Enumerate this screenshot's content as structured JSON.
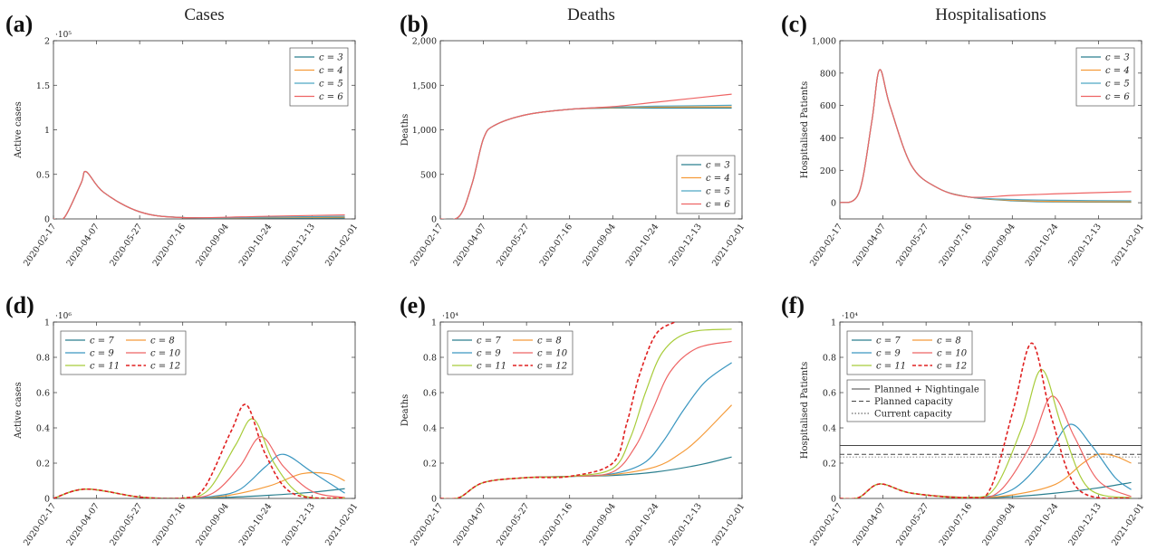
{
  "x_ticks": [
    "2020-02-17",
    "2020-04-07",
    "2020-05-27",
    "2020-07-16",
    "2020-09-04",
    "2020-10-24",
    "2020-12-13",
    "2021-02-01"
  ],
  "colors": {
    "c3": "#2a7f8f",
    "c4": "#f59b3a",
    "c5": "#4ea6c3",
    "c6": "#ee6464",
    "c7": "#2a7f8f",
    "c8": "#f59b3a",
    "c9": "#3a96c0",
    "c10": "#ee6464",
    "c11": "#a8cc3a",
    "c12": "#e02020",
    "capacity": "#444444"
  },
  "chart_data": [
    {
      "id": "a",
      "panel_label": "(a)",
      "type": "line",
      "title": "Cases",
      "ylabel": "Active cases",
      "multiplier": "·10⁵",
      "ylim": [
        0,
        2
      ],
      "yticks": [
        "0",
        "0.5",
        "1",
        "1.5",
        "2"
      ],
      "legend_position": "top-right",
      "series": [
        {
          "name": "c = 3",
          "x": [
            "2020-02-17",
            "2020-03-01",
            "2020-03-20",
            "2020-03-26",
            "2020-04-15",
            "2020-05-27",
            "2020-07-16",
            "2020-10-24",
            "2021-01-20"
          ],
          "y": [
            0,
            0.02,
            0.4,
            0.53,
            0.3,
            0.08,
            0.015,
            0.01,
            0.01
          ]
        },
        {
          "name": "c = 4",
          "x": [
            "2020-02-17",
            "2020-03-01",
            "2020-03-20",
            "2020-03-26",
            "2020-04-15",
            "2020-05-27",
            "2020-07-16",
            "2020-10-24",
            "2021-01-20"
          ],
          "y": [
            0,
            0.02,
            0.4,
            0.53,
            0.3,
            0.08,
            0.015,
            0.015,
            0.02
          ]
        },
        {
          "name": "c = 5",
          "x": [
            "2020-02-17",
            "2020-03-01",
            "2020-03-20",
            "2020-03-26",
            "2020-04-15",
            "2020-05-27",
            "2020-07-16",
            "2020-10-24",
            "2021-01-20"
          ],
          "y": [
            0,
            0.02,
            0.4,
            0.53,
            0.3,
            0.08,
            0.015,
            0.02,
            0.03
          ]
        },
        {
          "name": "c = 6",
          "x": [
            "2020-02-17",
            "2020-03-01",
            "2020-03-20",
            "2020-03-26",
            "2020-04-15",
            "2020-05-27",
            "2020-07-16",
            "2020-10-24",
            "2021-01-20"
          ],
          "y": [
            0,
            0.02,
            0.4,
            0.53,
            0.3,
            0.08,
            0.015,
            0.03,
            0.045
          ]
        }
      ]
    },
    {
      "id": "b",
      "panel_label": "(b)",
      "type": "line",
      "title": "Deaths",
      "ylabel": "Deaths",
      "multiplier": "",
      "ylim": [
        0,
        2000
      ],
      "yticks": [
        "0",
        "500",
        "1,000",
        "1,500",
        "2,000"
      ],
      "legend_position": "bottom-right",
      "series": [
        {
          "name": "c = 3",
          "x": [
            "2020-02-17",
            "2020-03-10",
            "2020-03-25",
            "2020-04-07",
            "2020-04-20",
            "2020-05-27",
            "2020-07-16",
            "2020-09-04",
            "2020-10-24",
            "2021-01-20"
          ],
          "y": [
            0,
            30,
            400,
            900,
            1050,
            1170,
            1230,
            1245,
            1245,
            1245
          ]
        },
        {
          "name": "c = 4",
          "x": [
            "2020-02-17",
            "2020-03-10",
            "2020-03-25",
            "2020-04-07",
            "2020-04-20",
            "2020-05-27",
            "2020-07-16",
            "2020-09-04",
            "2020-10-24",
            "2021-01-20"
          ],
          "y": [
            0,
            30,
            400,
            900,
            1050,
            1170,
            1230,
            1250,
            1255,
            1258
          ]
        },
        {
          "name": "c = 5",
          "x": [
            "2020-02-17",
            "2020-03-10",
            "2020-03-25",
            "2020-04-07",
            "2020-04-20",
            "2020-05-27",
            "2020-07-16",
            "2020-09-04",
            "2020-10-24",
            "2021-01-20"
          ],
          "y": [
            0,
            30,
            400,
            900,
            1050,
            1170,
            1230,
            1255,
            1265,
            1275
          ]
        },
        {
          "name": "c = 6",
          "x": [
            "2020-02-17",
            "2020-03-10",
            "2020-03-25",
            "2020-04-07",
            "2020-04-20",
            "2020-05-27",
            "2020-07-16",
            "2020-09-04",
            "2020-10-24",
            "2021-01-20"
          ],
          "y": [
            0,
            30,
            400,
            900,
            1050,
            1170,
            1230,
            1260,
            1310,
            1400
          ]
        }
      ]
    },
    {
      "id": "c",
      "panel_label": "(c)",
      "type": "line",
      "title": "Hospitalisations",
      "ylabel": "Hospitalised Patients",
      "multiplier": "",
      "ylim": [
        -100,
        1000
      ],
      "yticks": [
        "0",
        "200",
        "400",
        "600",
        "800",
        "1,000"
      ],
      "legend_position": "top-right",
      "series": [
        {
          "name": "c = 3",
          "x": [
            "2020-02-17",
            "2020-03-10",
            "2020-03-25",
            "2020-04-03",
            "2020-04-15",
            "2020-05-10",
            "2020-06-10",
            "2020-07-16",
            "2020-09-04",
            "2020-10-24",
            "2021-01-20"
          ],
          "y": [
            0,
            60,
            500,
            820,
            600,
            230,
            90,
            35,
            12,
            5,
            3
          ]
        },
        {
          "name": "c = 4",
          "x": [
            "2020-02-17",
            "2020-03-10",
            "2020-03-25",
            "2020-04-03",
            "2020-04-15",
            "2020-05-10",
            "2020-06-10",
            "2020-07-16",
            "2020-09-04",
            "2020-10-24",
            "2021-01-20"
          ],
          "y": [
            0,
            60,
            500,
            820,
            600,
            230,
            90,
            35,
            15,
            8,
            6
          ]
        },
        {
          "name": "c = 5",
          "x": [
            "2020-02-17",
            "2020-03-10",
            "2020-03-25",
            "2020-04-03",
            "2020-04-15",
            "2020-05-10",
            "2020-06-10",
            "2020-07-16",
            "2020-09-04",
            "2020-10-24",
            "2021-01-20"
          ],
          "y": [
            0,
            60,
            500,
            820,
            600,
            230,
            90,
            35,
            20,
            15,
            12
          ]
        },
        {
          "name": "c = 6",
          "x": [
            "2020-02-17",
            "2020-03-10",
            "2020-03-25",
            "2020-04-03",
            "2020-04-15",
            "2020-05-10",
            "2020-06-10",
            "2020-07-16",
            "2020-09-04",
            "2020-10-24",
            "2021-01-20"
          ],
          "y": [
            0,
            60,
            500,
            820,
            600,
            230,
            90,
            35,
            45,
            55,
            68
          ]
        }
      ]
    },
    {
      "id": "d",
      "panel_label": "(d)",
      "type": "line",
      "title": "",
      "ylabel": "Active cases",
      "multiplier": "·10⁶",
      "ylim": [
        0,
        1
      ],
      "yticks": [
        "0",
        "0.2",
        "0.4",
        "0.6",
        "0.8",
        "1"
      ],
      "legend_position": "top-left",
      "series": [
        {
          "name": "c = 7",
          "x": [
            "2020-02-17",
            "2020-03-26",
            "2020-05-27",
            "2020-07-16",
            "2020-09-04",
            "2020-10-24",
            "2020-12-13",
            "2021-01-20"
          ],
          "y": [
            0,
            0.053,
            0.008,
            0.002,
            0.006,
            0.018,
            0.035,
            0.055
          ]
        },
        {
          "name": "c = 8",
          "x": [
            "2020-02-17",
            "2020-03-26",
            "2020-05-27",
            "2020-07-16",
            "2020-09-04",
            "2020-10-24",
            "2020-12-01",
            "2021-01-01",
            "2021-01-20"
          ],
          "y": [
            0,
            0.053,
            0.008,
            0.002,
            0.015,
            0.07,
            0.14,
            0.14,
            0.1
          ]
        },
        {
          "name": "c = 9",
          "x": [
            "2020-02-17",
            "2020-03-26",
            "2020-05-27",
            "2020-07-16",
            "2020-08-20",
            "2020-09-20",
            "2020-10-20",
            "2020-11-10",
            "2020-12-13",
            "2021-01-20"
          ],
          "y": [
            0,
            0.053,
            0.008,
            0.002,
            0.012,
            0.05,
            0.18,
            0.25,
            0.15,
            0.03
          ]
        },
        {
          "name": "c = 10",
          "x": [
            "2020-02-17",
            "2020-03-26",
            "2020-05-27",
            "2020-07-16",
            "2020-08-20",
            "2020-09-20",
            "2020-10-15",
            "2020-11-10",
            "2020-12-13",
            "2021-01-20"
          ],
          "y": [
            0,
            0.053,
            0.008,
            0.002,
            0.03,
            0.18,
            0.35,
            0.18,
            0.04,
            0.005
          ]
        },
        {
          "name": "c = 11",
          "x": [
            "2020-02-17",
            "2020-03-26",
            "2020-05-27",
            "2020-07-16",
            "2020-08-15",
            "2020-09-15",
            "2020-10-06",
            "2020-10-30",
            "2020-12-01",
            "2021-01-20"
          ],
          "y": [
            0,
            0.053,
            0.008,
            0.002,
            0.05,
            0.3,
            0.45,
            0.2,
            0.02,
            0.002
          ]
        },
        {
          "name": "c = 12",
          "x": [
            "2020-02-17",
            "2020-03-26",
            "2020-05-27",
            "2020-07-16",
            "2020-08-10",
            "2020-09-10",
            "2020-09-28",
            "2020-10-20",
            "2020-11-20",
            "2021-01-20"
          ],
          "y": [
            0,
            0.053,
            0.008,
            0.002,
            0.06,
            0.38,
            0.53,
            0.25,
            0.03,
            0.001
          ]
        }
      ]
    },
    {
      "id": "e",
      "panel_label": "(e)",
      "type": "line",
      "title": "",
      "ylabel": "Deaths",
      "multiplier": "·10⁴",
      "ylim": [
        0,
        1
      ],
      "yticks": [
        "0",
        "0.2",
        "0.4",
        "0.6",
        "0.8",
        "1"
      ],
      "legend_position": "top-left",
      "series": [
        {
          "name": "c = 7",
          "x": [
            "2020-02-17",
            "2020-03-10",
            "2020-04-07",
            "2020-05-27",
            "2020-07-16",
            "2020-09-04",
            "2020-10-24",
            "2020-12-13",
            "2021-01-20"
          ],
          "y": [
            0,
            0.005,
            0.09,
            0.118,
            0.125,
            0.13,
            0.15,
            0.19,
            0.235
          ]
        },
        {
          "name": "c = 8",
          "x": [
            "2020-02-17",
            "2020-03-10",
            "2020-04-07",
            "2020-05-27",
            "2020-07-16",
            "2020-09-04",
            "2020-10-24",
            "2020-11-20",
            "2020-12-13",
            "2021-01-20"
          ],
          "y": [
            0,
            0.005,
            0.09,
            0.118,
            0.125,
            0.135,
            0.18,
            0.25,
            0.34,
            0.53
          ]
        },
        {
          "name": "c = 9",
          "x": [
            "2020-02-17",
            "2020-03-10",
            "2020-04-07",
            "2020-05-27",
            "2020-07-16",
            "2020-09-04",
            "2020-10-10",
            "2020-11-01",
            "2020-11-25",
            "2020-12-20",
            "2021-01-20"
          ],
          "y": [
            0,
            0.005,
            0.09,
            0.118,
            0.125,
            0.14,
            0.2,
            0.32,
            0.5,
            0.66,
            0.77
          ]
        },
        {
          "name": "c = 10",
          "x": [
            "2020-02-17",
            "2020-03-10",
            "2020-04-07",
            "2020-05-27",
            "2020-07-16",
            "2020-09-04",
            "2020-10-01",
            "2020-10-20",
            "2020-11-10",
            "2020-12-10",
            "2021-01-20"
          ],
          "y": [
            0,
            0.005,
            0.09,
            0.118,
            0.125,
            0.15,
            0.3,
            0.5,
            0.72,
            0.85,
            0.89
          ]
        },
        {
          "name": "c = 11",
          "x": [
            "2020-02-17",
            "2020-03-10",
            "2020-04-07",
            "2020-05-27",
            "2020-07-16",
            "2020-09-04",
            "2020-09-25",
            "2020-10-12",
            "2020-11-01",
            "2020-12-01",
            "2021-01-20"
          ],
          "y": [
            0,
            0.005,
            0.09,
            0.118,
            0.125,
            0.17,
            0.35,
            0.6,
            0.83,
            0.94,
            0.96
          ]
        },
        {
          "name": "c = 12",
          "x": [
            "2020-02-17",
            "2020-03-10",
            "2020-04-07",
            "2020-05-27",
            "2020-07-16",
            "2020-09-04",
            "2020-09-20",
            "2020-10-05",
            "2020-10-24",
            "2020-11-15"
          ],
          "y": [
            0,
            0.005,
            0.09,
            0.118,
            0.125,
            0.2,
            0.42,
            0.7,
            0.93,
            1.0
          ]
        }
      ]
    },
    {
      "id": "f",
      "panel_label": "(f)",
      "type": "line",
      "title": "",
      "ylabel": "Hospitalised Patients",
      "multiplier": "·10⁴",
      "ylim": [
        0,
        1
      ],
      "yticks": [
        "0",
        "0.2",
        "0.4",
        "0.6",
        "0.8",
        "1"
      ],
      "legend_position": "top-left",
      "reference_lines": [
        {
          "name": "Planned + Nightingale",
          "y": 0.3,
          "style": "solid"
        },
        {
          "name": "Planned capacity",
          "y": 0.25,
          "style": "dashed"
        },
        {
          "name": "Current capacity",
          "y": 0.235,
          "style": "dotted"
        }
      ],
      "series": [
        {
          "name": "c = 7",
          "x": [
            "2020-02-17",
            "2020-03-10",
            "2020-04-03",
            "2020-05-10",
            "2020-07-16",
            "2020-09-04",
            "2020-10-24",
            "2020-12-13",
            "2021-01-20"
          ],
          "y": [
            0,
            0.005,
            0.082,
            0.03,
            0.005,
            0.01,
            0.03,
            0.06,
            0.09
          ]
        },
        {
          "name": "c = 8",
          "x": [
            "2020-02-17",
            "2020-03-10",
            "2020-04-03",
            "2020-05-10",
            "2020-07-16",
            "2020-09-04",
            "2020-10-24",
            "2020-11-25",
            "2020-12-13",
            "2021-01-01",
            "2021-01-20"
          ],
          "y": [
            0,
            0.005,
            0.082,
            0.03,
            0.005,
            0.02,
            0.08,
            0.2,
            0.25,
            0.24,
            0.2
          ]
        },
        {
          "name": "c = 9",
          "x": [
            "2020-02-17",
            "2020-03-10",
            "2020-04-03",
            "2020-05-10",
            "2020-07-16",
            "2020-09-04",
            "2020-10-15",
            "2020-11-10",
            "2020-12-05",
            "2021-01-01",
            "2021-01-20"
          ],
          "y": [
            0,
            0.005,
            0.082,
            0.03,
            0.005,
            0.05,
            0.25,
            0.42,
            0.3,
            0.12,
            0.05
          ]
        },
        {
          "name": "c = 10",
          "x": [
            "2020-02-17",
            "2020-03-10",
            "2020-04-03",
            "2020-05-10",
            "2020-07-16",
            "2020-08-20",
            "2020-09-25",
            "2020-10-20",
            "2020-11-15",
            "2020-12-13",
            "2021-01-20"
          ],
          "y": [
            0,
            0.005,
            0.082,
            0.03,
            0.005,
            0.04,
            0.3,
            0.58,
            0.35,
            0.1,
            0.01
          ]
        },
        {
          "name": "c = 11",
          "x": [
            "2020-02-17",
            "2020-03-10",
            "2020-04-03",
            "2020-05-10",
            "2020-07-16",
            "2020-08-15",
            "2020-09-15",
            "2020-10-08",
            "2020-11-01",
            "2020-12-01",
            "2021-01-20"
          ],
          "y": [
            0,
            0.005,
            0.082,
            0.03,
            0.005,
            0.06,
            0.4,
            0.73,
            0.4,
            0.06,
            0.003
          ]
        },
        {
          "name": "c = 12",
          "x": [
            "2020-02-17",
            "2020-03-10",
            "2020-04-03",
            "2020-05-10",
            "2020-07-16",
            "2020-08-10",
            "2020-09-05",
            "2020-09-27",
            "2020-10-20",
            "2020-11-20",
            "2021-01-20"
          ],
          "y": [
            0,
            0.005,
            0.082,
            0.03,
            0.005,
            0.06,
            0.5,
            0.88,
            0.45,
            0.05,
            0.001
          ]
        }
      ]
    }
  ]
}
